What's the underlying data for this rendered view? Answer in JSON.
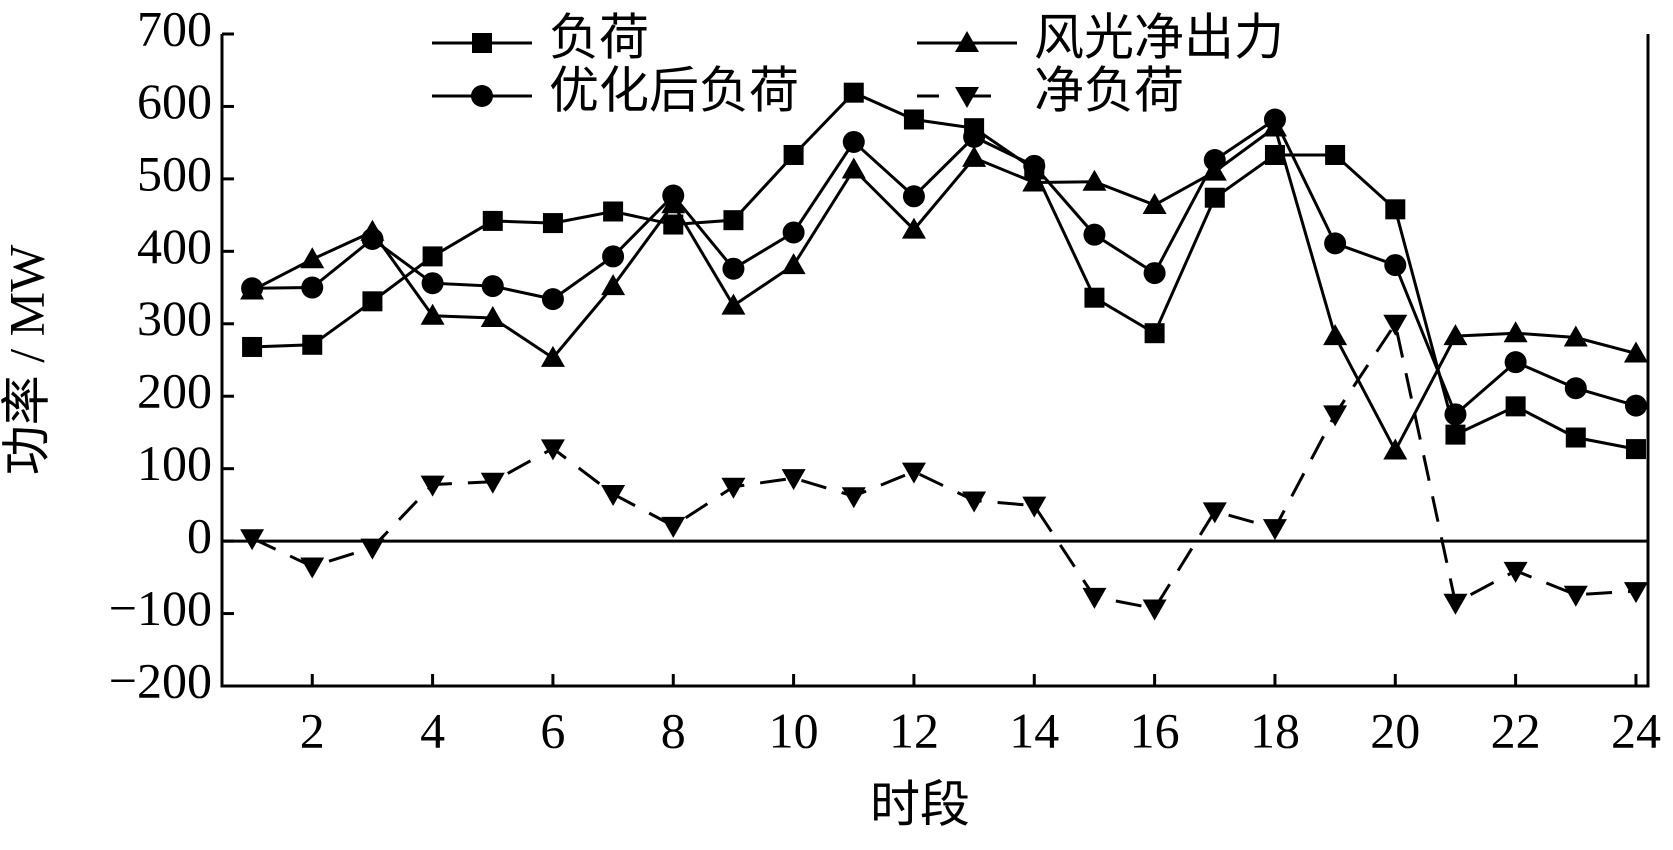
{
  "chart_data": {
    "type": "line",
    "x_label": "时段",
    "y_label": "功率 / MW",
    "x": [
      1,
      2,
      3,
      4,
      5,
      6,
      7,
      8,
      9,
      10,
      11,
      12,
      13,
      14,
      15,
      16,
      17,
      18,
      19,
      20,
      21,
      22,
      23,
      24
    ],
    "xlim": [
      0.5,
      24.2
    ],
    "xticks": [
      2,
      4,
      6,
      8,
      10,
      12,
      14,
      16,
      18,
      20,
      22,
      24
    ],
    "ylim": [
      -200,
      700
    ],
    "yticks": [
      {
        "value": -200,
        "label": "−200"
      },
      {
        "value": -100,
        "label": "−100"
      },
      0,
      100,
      200,
      300,
      400,
      500,
      600,
      700
    ],
    "zero_line": true,
    "series": [
      {
        "name": "负荷",
        "color": "#000000",
        "marker": "square",
        "line_style": "solid",
        "values": [
          268,
          271,
          331,
          393,
          442,
          439,
          455,
          437,
          443,
          533,
          619,
          582,
          570,
          513,
          336,
          287,
          474,
          533,
          533,
          458,
          147,
          186,
          143,
          127
        ]
      },
      {
        "name": "风光净出力",
        "color": "#000000",
        "marker": "triangle-up",
        "line_style": "solid",
        "values": [
          346,
          389,
          427,
          311,
          308,
          253,
          352,
          465,
          325,
          381,
          513,
          430,
          529,
          495,
          496,
          464,
          510,
          571,
          283,
          125,
          283,
          287,
          281,
          259
        ]
      },
      {
        "name": "优化后负荷",
        "color": "#000000",
        "marker": "circle",
        "line_style": "solid",
        "values": [
          349,
          350,
          417,
          356,
          352,
          334,
          393,
          477,
          376,
          426,
          551,
          476,
          558,
          518,
          423,
          370,
          526,
          582,
          411,
          381,
          175,
          247,
          211,
          187
        ]
      },
      {
        "name": "净负荷",
        "color": "#000000",
        "marker": "triangle-down",
        "line_style": "dashed",
        "values": [
          4,
          -35,
          -9,
          78,
          82,
          128,
          65,
          21,
          75,
          87,
          62,
          96,
          56,
          49,
          -77,
          -93,
          41,
          18,
          175,
          300,
          -85,
          -41,
          -74,
          -69
        ]
      }
    ]
  }
}
